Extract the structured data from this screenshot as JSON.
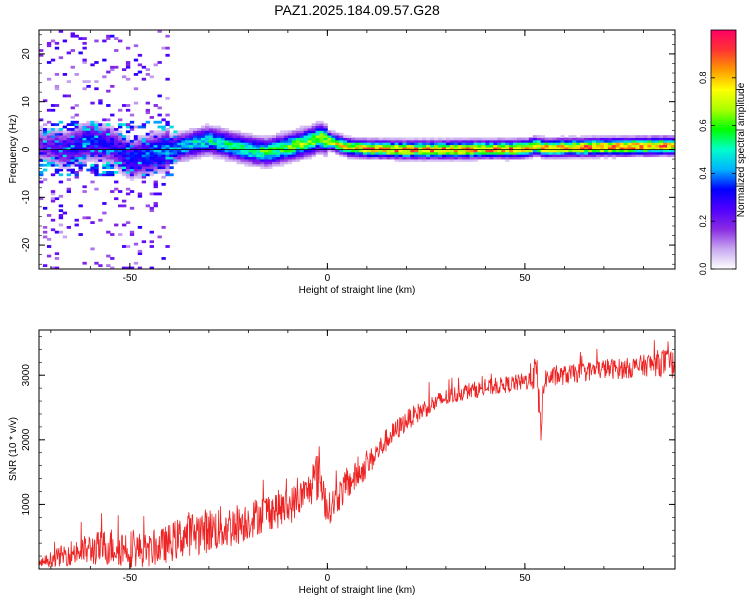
{
  "figure": {
    "title": "PAZ1.2025.184.09.57.G28"
  },
  "chart_data": [
    {
      "type": "heatmap",
      "xlabel": "Height of straight line (km)",
      "ylabel": "Frequency (Hz)",
      "xlim": [
        -73,
        88
      ],
      "ylim": [
        -25,
        25
      ],
      "xticks": [
        -50,
        0,
        50
      ],
      "yticks": [
        -20,
        -10,
        0,
        10,
        20
      ],
      "colorbar": {
        "label": "Normalized spectral amplitude",
        "range": [
          0,
          1
        ],
        "ticks": [
          0.0,
          0.2,
          0.4,
          0.6,
          0.8
        ],
        "tick_labels": [
          "0.0",
          "0.2",
          "0.4",
          "0.6",
          "0.8"
        ],
        "colormap": [
          "#ffffff",
          "#c8a8f0",
          "#8a2be2",
          "#5000ff",
          "#0000ff",
          "#00b4ff",
          "#00ffcc",
          "#00ff00",
          "#aaff00",
          "#ffff00",
          "#ff9900",
          "#ff3333",
          "#ff0066"
        ]
      },
      "ridge": {
        "x": [
          -72,
          -66,
          -60,
          -55,
          -50,
          -45,
          -40,
          -35,
          -30,
          -25,
          -20,
          -15,
          -10,
          -5,
          -2,
          0,
          5,
          10,
          20,
          30,
          40,
          50,
          53,
          55,
          60,
          70,
          80,
          88
        ],
        "frequency": [
          1,
          0,
          2,
          1,
          -2,
          -1,
          0,
          1,
          2,
          1,
          0,
          -0.5,
          0.5,
          1.5,
          2.5,
          2,
          0.5,
          0.2,
          0,
          0,
          0.1,
          0.2,
          0.8,
          0.3,
          0.4,
          0.6,
          0.7,
          0.8
        ],
        "amplitude": [
          0.2,
          0.3,
          0.35,
          0.3,
          0.35,
          0.4,
          0.45,
          0.5,
          0.55,
          0.55,
          0.6,
          0.6,
          0.65,
          0.7,
          0.7,
          0.75,
          0.8,
          0.85,
          0.9,
          0.9,
          0.9,
          0.88,
          0.85,
          0.9,
          0.9,
          0.92,
          0.92,
          0.92
        ]
      }
    },
    {
      "type": "line",
      "xlabel": "Height of straight line (km)",
      "ylabel": "SNR (10 * v/v)",
      "xlim": [
        -73,
        88
      ],
      "ylim": [
        0,
        3700
      ],
      "xticks": [
        -50,
        0,
        50
      ],
      "yticks": [
        1000,
        2000,
        3000
      ],
      "series": [
        {
          "color": "#ee2222",
          "x": [
            -73,
            -70,
            -65,
            -60,
            -55,
            -50,
            -45,
            -40,
            -35,
            -30,
            -25,
            -20,
            -15,
            -10,
            -5,
            -2,
            0,
            5,
            10,
            15,
            20,
            25,
            30,
            35,
            40,
            45,
            50,
            53,
            54,
            55,
            60,
            65,
            70,
            75,
            80,
            85,
            88
          ],
          "y": [
            80,
            150,
            250,
            300,
            350,
            320,
            280,
            400,
            550,
            600,
            650,
            750,
            900,
            950,
            1200,
            1500,
            900,
            1300,
            1600,
            2000,
            2300,
            2500,
            2650,
            2750,
            2800,
            2850,
            2900,
            3050,
            2200,
            2950,
            3000,
            3050,
            3100,
            3100,
            3150,
            3200,
            3150
          ],
          "spread": [
            70,
            120,
            200,
            250,
            300,
            300,
            250,
            300,
            350,
            350,
            350,
            300,
            300,
            300,
            250,
            450,
            250,
            250,
            200,
            180,
            160,
            150,
            140,
            130,
            130,
            130,
            140,
            300,
            300,
            160,
            150,
            150,
            160,
            160,
            170,
            220,
            220
          ]
        }
      ]
    }
  ]
}
